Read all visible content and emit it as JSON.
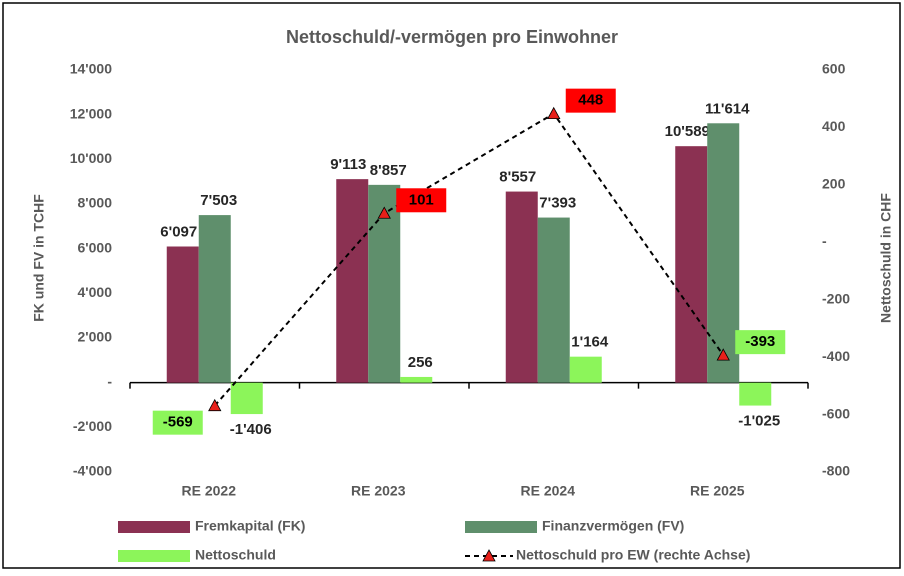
{
  "chart_data": {
    "type": "bar_line",
    "title": "Nettoschuld/-vermögen pro Einwohner",
    "ylabel": "FK und FV in TCHF",
    "y2label": "Nettoschuld in CHF",
    "categories": [
      "RE 2022",
      "RE 2023",
      "RE 2024",
      "RE 2025"
    ],
    "series": [
      {
        "name": "Fremkapital (FK)",
        "type": "bar",
        "color": "#8B3152",
        "values": [
          6097,
          9113,
          8557,
          10589
        ],
        "value_labels": [
          "6'097",
          "9'113",
          "8'557",
          "10'589"
        ]
      },
      {
        "name": "Finanzvermögen (FV)",
        "type": "bar",
        "color": "#5F8F6C",
        "values": [
          7503,
          8857,
          7393,
          11614
        ],
        "value_labels": [
          "7'503",
          "8'857",
          "7'393",
          "11'614"
        ]
      },
      {
        "name": "Nettoschuld",
        "type": "bar",
        "color": "#8CF55A",
        "values": [
          -1406,
          256,
          1164,
          -1025
        ],
        "value_labels": [
          "-1'406",
          "256",
          "1'164",
          "-1'025"
        ]
      },
      {
        "name": "Nettoschuld pro EW (rechte Achse)",
        "type": "line",
        "axis": "y2",
        "color": "#000000",
        "marker_color": "#E8201A",
        "values": [
          -569,
          101,
          448,
          -393
        ],
        "label_colors": [
          "#8CF55A",
          "#FF0000",
          "#FF0000",
          "#8CF55A"
        ]
      }
    ],
    "ylim": [
      -4000,
      14000
    ],
    "yticks": [
      {
        "value": -4000,
        "label": "-4'000"
      },
      {
        "value": -2000,
        "label": "-2'000"
      },
      {
        "value": 0,
        "label": "-"
      },
      {
        "value": 2000,
        "label": "2'000"
      },
      {
        "value": 4000,
        "label": "4'000"
      },
      {
        "value": 6000,
        "label": "6'000"
      },
      {
        "value": 8000,
        "label": "8'000"
      },
      {
        "value": 10000,
        "label": "10'000"
      },
      {
        "value": 12000,
        "label": "12'000"
      },
      {
        "value": 14000,
        "label": "14'000"
      }
    ],
    "y2lim": [
      -800,
      600
    ],
    "y2ticks": [
      -800,
      -600,
      -400,
      -200,
      {
        "value": 0,
        "label": "-"
      },
      200,
      400,
      600
    ],
    "legend": "bottom",
    "grid": false
  }
}
